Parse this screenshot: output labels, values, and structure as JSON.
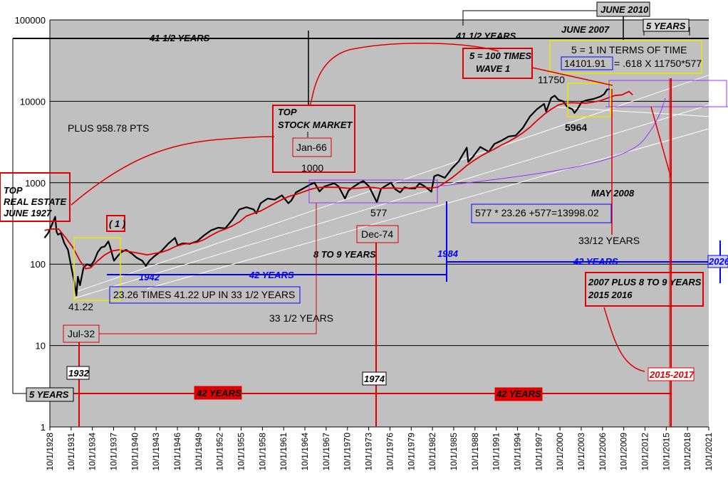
{
  "colors": {
    "plot_bg": "#c0c0c0",
    "price": "#000000",
    "moving_avg": "#e00000",
    "blue": "#0000ff",
    "red": "#e00000",
    "yellow": "#e8e800",
    "purple": "#8a2be2",
    "white": "#ffffff"
  },
  "chart_data": {
    "type": "line",
    "title": "",
    "xlabel": "",
    "ylabel": "",
    "y_scale": "log",
    "ylim": [
      1,
      100000
    ],
    "y_ticks": [
      "1",
      "10",
      "100",
      "1000",
      "10000",
      "100000"
    ],
    "xlim": [
      1928.75,
      2021.75
    ],
    "x_ticks": [
      "10/1/1928",
      "10/1/1931",
      "10/1/1934",
      "10/1/1937",
      "10/1/1940",
      "10/1/1943",
      "10/1/1946",
      "10/1/1949",
      "10/1/1952",
      "10/1/1955",
      "10/1/1958",
      "10/1/1961",
      "10/1/1964",
      "10/1/1967",
      "10/1/1970",
      "10/1/1973",
      "10/1/1976",
      "10/1/1979",
      "10/1/1982",
      "10/1/1985",
      "10/1/1988",
      "10/1/1991",
      "10/1/1994",
      "10/1/1997",
      "10/1/2000",
      "10/1/2003",
      "10/1/2006",
      "10/1/2009",
      "10/1/2012",
      "10/1/2015",
      "10/1/2018",
      "10/1/2021"
    ],
    "grid": "horizontal",
    "legend": "none",
    "series": [
      {
        "role": "price",
        "x": [
          1928.0,
          1928.5,
          1929.0,
          1929.5,
          1929.7,
          1929.9,
          1930.3,
          1930.8,
          1931.3,
          1931.8,
          1932.2,
          1932.5,
          1932.7,
          1933.0,
          1933.5,
          1934.0,
          1934.5,
          1935.0,
          1935.5,
          1936.0,
          1936.5,
          1937.0,
          1937.2,
          1937.8,
          1938.3,
          1938.8,
          1939.5,
          1940.3,
          1941.0,
          1941.8,
          1942.3,
          1942.8,
          1943.5,
          1944.5,
          1945.5,
          1946.4,
          1946.8,
          1947.5,
          1948.5,
          1949.5,
          1950.5,
          1951.5,
          1952.5,
          1953.5,
          1954.5,
          1955.5,
          1956.5,
          1957.5,
          1957.9,
          1958.5,
          1959.5,
          1960.5,
          1961.5,
          1962.4,
          1962.8,
          1963.5,
          1964.5,
          1965.5,
          1966.1,
          1966.8,
          1967.5,
          1968.9,
          1969.5,
          1970.4,
          1970.9,
          1971.5,
          1972.5,
          1973.0,
          1973.8,
          1974.9,
          1975.5,
          1976.9,
          1977.5,
          1978.2,
          1978.8,
          1979.5,
          1980.3,
          1980.9,
          1981.5,
          1982.6,
          1983.0,
          1983.5,
          1984.5,
          1985.5,
          1986.5,
          1987.6,
          1987.8,
          1988.5,
          1989.5,
          1990.7,
          1991.5,
          1992.5,
          1993.5,
          1994.5,
          1995.5,
          1996.5,
          1997.5,
          1998.5,
          1998.8,
          1999.5,
          2000.0,
          2000.5,
          2001.2,
          2001.8,
          2002.5,
          2002.8,
          2003.2,
          2003.8,
          2004.5,
          2005.5,
          2006.5,
          2007.0,
          2007.4,
          2007.8
        ],
        "y": [
          210,
          240,
          300,
          381,
          250,
          230,
          240,
          180,
          150,
          90,
          60,
          41.22,
          70,
          55,
          90,
          100,
          95,
          110,
          140,
          160,
          165,
          190,
          170,
          110,
          125,
          140,
          150,
          135,
          120,
          110,
          95,
          110,
          125,
          145,
          180,
          210,
          170,
          180,
          178,
          190,
          225,
          260,
          280,
          275,
          350,
          470,
          500,
          470,
          420,
          560,
          640,
          620,
          700,
          560,
          600,
          760,
          850,
          950,
          1000,
          780,
          900,
          985,
          900,
          640,
          800,
          880,
          1000,
          1050,
          900,
          577,
          850,
          1000,
          830,
          760,
          880,
          850,
          850,
          980,
          920,
          776,
          1200,
          1250,
          1150,
          1500,
          1850,
          2700,
          1800,
          2100,
          2750,
          2400,
          3000,
          3300,
          3700,
          3800,
          4700,
          6500,
          8000,
          9300,
          7500,
          11000,
          11750,
          10500,
          10000,
          8500,
          8000,
          7200,
          8000,
          9800,
          10300,
          10700,
          11500,
          12300,
          14000,
          14101.91
        ]
      },
      {
        "role": "moving_average",
        "x": [
          1928.0,
          1929.0,
          1930.0,
          1931.0,
          1932.0,
          1933.0,
          1933.8,
          1934.5,
          1935.5,
          1936.5,
          1937.5,
          1938.5,
          1939.5,
          1940.5,
          1941.5,
          1942.5,
          1943.5,
          1944.5,
          1945.5,
          1946.5,
          1947.5,
          1948.5,
          1949.5,
          1950.5,
          1951.5,
          1952.5,
          1953.5,
          1954.5,
          1955.5,
          1956.5,
          1957.5,
          1958.5,
          1959.5,
          1960.5,
          1961.5,
          1962.5,
          1963.5,
          1964.5,
          1965.5,
          1966.5,
          1967.5,
          1968.5,
          1969.5,
          1970.5,
          1971.5,
          1972.5,
          1973.5,
          1974.5,
          1975.5,
          1976.5,
          1977.5,
          1978.5,
          1979.5,
          1980.5,
          1981.5,
          1982.5,
          1983.5,
          1984.5,
          1985.5,
          1986.5,
          1987.5,
          1988.5,
          1989.5,
          1990.5,
          1991.5,
          1992.5,
          1993.5,
          1994.5,
          1995.5,
          1996.5,
          1997.5,
          1998.5,
          1999.5,
          2000.5,
          2001.5,
          2002.5,
          2003.5,
          2004.5,
          2005.5,
          2006.5,
          2007.5,
          2008.5,
          2009.5,
          2010.5,
          2011.0
        ],
        "y": [
          260,
          270,
          270,
          210,
          160,
          110,
          88,
          90,
          110,
          130,
          145,
          150,
          145,
          140,
          135,
          130,
          135,
          140,
          150,
          165,
          175,
          180,
          185,
          200,
          225,
          250,
          270,
          295,
          330,
          390,
          420,
          450,
          500,
          560,
          620,
          680,
          720,
          770,
          830,
          870,
          880,
          880,
          875,
          860,
          850,
          860,
          880,
          870,
          850,
          860,
          860,
          850,
          860,
          880,
          880,
          860,
          880,
          1000,
          1150,
          1350,
          1600,
          1850,
          2100,
          2350,
          2600,
          2900,
          3200,
          3600,
          4100,
          4800,
          5800,
          6900,
          8000,
          9000,
          9500,
          9600,
          9500,
          9500,
          9800,
          10200,
          11000,
          11800,
          12000,
          13200,
          12000
        ]
      }
    ],
    "annotations": [
      "100000",
      "10000",
      "1000",
      "100",
      "10",
      "1",
      "41 1/2 YEARS",
      "41 1/2 YEARS",
      "JUNE 2010",
      "JUNE 2007",
      "5 YEARS",
      "5 = 1 IN TERMS OF TIME",
      "14101.91",
      "= .618 X 11750*577",
      "5 = 100 TIMES",
      "WAVE 1",
      "11750",
      "TOP",
      "STOCK MARKET",
      "Jan-66",
      "PLUS 958.78 PTS",
      "1000",
      "5964",
      "TOP",
      "REAL ESTATE",
      "JUNE 1927",
      "MAY 2008",
      "577",
      "577 * 23.26 +577=13998.02",
      "Dec-74",
      "33/12 YEARS",
      "( 1 )",
      "8 TO 9 YEARS",
      "1984",
      "42 YEARS",
      "2026",
      "1942",
      "42 YEARS",
      "2007 PLUS 8 TO 9 YEARS",
      "2015 2016",
      "23.26 TIMES 41.22 UP IN 33 1/2 YEARS",
      "41.22",
      "33 1/2 YEARS",
      "Jul-32",
      "1932",
      "1974",
      "2015-2017",
      "5 YEARS",
      "42 YEARS",
      "42 YEARS"
    ]
  }
}
